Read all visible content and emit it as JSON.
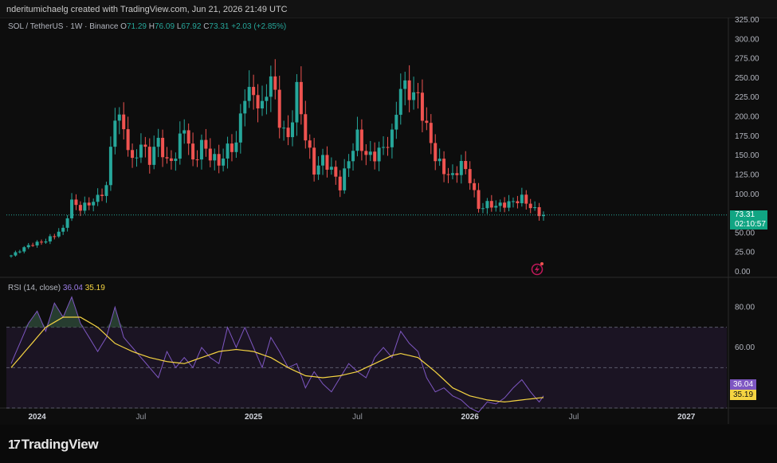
{
  "header": {
    "text": "nderitumichaelg created with TradingView.com, Jun 21, 2026 21:49 UTC"
  },
  "legend": {
    "symbol": "SOL / TetherUS · 1W · Binance",
    "open_label": "O",
    "open": "71.29",
    "high_label": "H",
    "high": "76.09",
    "low_label": "L",
    "low": "67.92",
    "close_label": "C",
    "close": "73.31",
    "change": "+2.03 (+2.85%)"
  },
  "price_tag": {
    "price": "73.31",
    "countdown": "02:10:57"
  },
  "rsi_legend": {
    "label": "RSI (14, close)",
    "rsi": "36.04",
    "ma": "35.19"
  },
  "branding": {
    "logo_mark": "17",
    "logo_text": "TradingView"
  },
  "colors": {
    "up": "#26a69a",
    "down": "#ef5350",
    "rsi": "#7e57c2",
    "rsi_ma": "#f5d442",
    "price_tag": "#11a583"
  },
  "chart_data": [
    {
      "type": "candlestick",
      "title": "SOL / TetherUS · 1W · Binance",
      "ylim": [
        0,
        325
      ],
      "y_ticks": [
        "325.00",
        "300.00",
        "275.00",
        "250.00",
        "225.00",
        "200.00",
        "175.00",
        "150.00",
        "125.00",
        "100.00",
        "50.00",
        "25.00",
        "0.00"
      ],
      "x_ticks": [
        "2024",
        "Jul",
        "2025",
        "Jul",
        "2026",
        "Jul",
        "2027"
      ],
      "last_close": 73.31,
      "grid": false,
      "close_series": [
        [
          0,
          21
        ],
        [
          4,
          34
        ],
        [
          8,
          40
        ],
        [
          12,
          55
        ],
        [
          14,
          90
        ],
        [
          16,
          82
        ],
        [
          18,
          88
        ],
        [
          20,
          95
        ],
        [
          22,
          110
        ],
        [
          24,
          205
        ],
        [
          26,
          185
        ],
        [
          28,
          140
        ],
        [
          30,
          165
        ],
        [
          32,
          145
        ],
        [
          34,
          170
        ],
        [
          36,
          140
        ],
        [
          38,
          150
        ],
        [
          40,
          190
        ],
        [
          42,
          140
        ],
        [
          44,
          165
        ],
        [
          46,
          150
        ],
        [
          48,
          140
        ],
        [
          50,
          158
        ],
        [
          52,
          165
        ],
        [
          54,
          232
        ],
        [
          56,
          228
        ],
        [
          58,
          210
        ],
        [
          60,
          255
        ],
        [
          62,
          195
        ],
        [
          64,
          170
        ],
        [
          66,
          235
        ],
        [
          68,
          175
        ],
        [
          70,
          130
        ],
        [
          72,
          145
        ],
        [
          74,
          132
        ],
        [
          76,
          110
        ],
        [
          78,
          145
        ],
        [
          80,
          175
        ],
        [
          82,
          150
        ],
        [
          84,
          150
        ],
        [
          86,
          160
        ],
        [
          88,
          175
        ],
        [
          90,
          240
        ],
        [
          92,
          232
        ],
        [
          94,
          225
        ],
        [
          96,
          185
        ],
        [
          98,
          148
        ],
        [
          100,
          130
        ],
        [
          102,
          122
        ],
        [
          104,
          140
        ],
        [
          106,
          120
        ],
        [
          108,
          82
        ],
        [
          110,
          87
        ],
        [
          112,
          85
        ],
        [
          114,
          87
        ],
        [
          116,
          90
        ],
        [
          118,
          95
        ],
        [
          120,
          84
        ],
        [
          122,
          75
        ],
        [
          123,
          73.31
        ]
      ]
    },
    {
      "type": "line",
      "title": "RSI (14, close)",
      "ylim": [
        30,
        90
      ],
      "y_ticks": [
        "80.00",
        "60.00",
        "40.00"
      ],
      "bands": [
        30,
        50,
        70
      ],
      "series": [
        {
          "name": "RSI",
          "last": 36.04
        },
        {
          "name": "MA",
          "last": 35.19
        }
      ],
      "rsi_points": [
        [
          0,
          52
        ],
        [
          4,
          72
        ],
        [
          6,
          78
        ],
        [
          8,
          68
        ],
        [
          10,
          82
        ],
        [
          12,
          75
        ],
        [
          14,
          85
        ],
        [
          16,
          72
        ],
        [
          18,
          65
        ],
        [
          20,
          58
        ],
        [
          22,
          65
        ],
        [
          24,
          80
        ],
        [
          26,
          65
        ],
        [
          28,
          60
        ],
        [
          30,
          55
        ],
        [
          32,
          50
        ],
        [
          34,
          45
        ],
        [
          36,
          58
        ],
        [
          38,
          50
        ],
        [
          40,
          55
        ],
        [
          42,
          50
        ],
        [
          44,
          60
        ],
        [
          46,
          55
        ],
        [
          48,
          52
        ],
        [
          50,
          70
        ],
        [
          52,
          60
        ],
        [
          54,
          70
        ],
        [
          56,
          60
        ],
        [
          58,
          50
        ],
        [
          60,
          65
        ],
        [
          62,
          58
        ],
        [
          64,
          50
        ],
        [
          66,
          52
        ],
        [
          68,
          40
        ],
        [
          70,
          48
        ],
        [
          72,
          42
        ],
        [
          74,
          38
        ],
        [
          76,
          45
        ],
        [
          78,
          52
        ],
        [
          80,
          48
        ],
        [
          82,
          45
        ],
        [
          84,
          55
        ],
        [
          86,
          60
        ],
        [
          88,
          55
        ],
        [
          90,
          68
        ],
        [
          92,
          62
        ],
        [
          94,
          58
        ],
        [
          96,
          45
        ],
        [
          98,
          38
        ],
        [
          100,
          40
        ],
        [
          102,
          36
        ],
        [
          104,
          34
        ],
        [
          106,
          30
        ],
        [
          108,
          28
        ],
        [
          110,
          33
        ],
        [
          112,
          32
        ],
        [
          114,
          35
        ],
        [
          116,
          40
        ],
        [
          118,
          44
        ],
        [
          120,
          38
        ],
        [
          122,
          33
        ],
        [
          123,
          36.04
        ]
      ],
      "ma_points": [
        [
          0,
          50
        ],
        [
          4,
          60
        ],
        [
          8,
          70
        ],
        [
          12,
          75
        ],
        [
          16,
          75
        ],
        [
          20,
          70
        ],
        [
          24,
          62
        ],
        [
          28,
          58
        ],
        [
          32,
          55
        ],
        [
          36,
          53
        ],
        [
          40,
          52
        ],
        [
          44,
          55
        ],
        [
          48,
          58
        ],
        [
          52,
          59
        ],
        [
          56,
          58
        ],
        [
          60,
          55
        ],
        [
          64,
          50
        ],
        [
          68,
          46
        ],
        [
          72,
          45
        ],
        [
          76,
          46
        ],
        [
          80,
          48
        ],
        [
          84,
          52
        ],
        [
          88,
          56
        ],
        [
          90,
          57
        ],
        [
          94,
          55
        ],
        [
          98,
          48
        ],
        [
          102,
          40
        ],
        [
          106,
          36
        ],
        [
          110,
          34
        ],
        [
          114,
          33
        ],
        [
          118,
          34
        ],
        [
          122,
          35
        ],
        [
          123,
          35.19
        ]
      ]
    }
  ]
}
